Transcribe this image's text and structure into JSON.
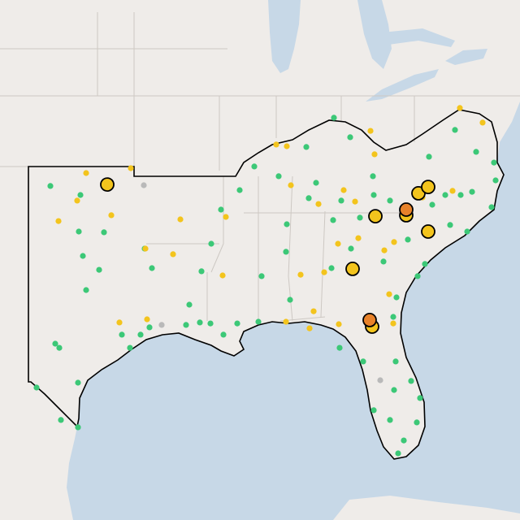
{
  "map": {
    "markers": [
      {
        "color": "#3cc877",
        "outlined": false,
        "points": [
          [
            -101.9,
            36.37
          ],
          [
            -100.05,
            36.0
          ],
          [
            -100.15,
            34.5
          ],
          [
            -98.6,
            34.47
          ],
          [
            -99.9,
            33.5
          ],
          [
            -98.9,
            32.93
          ],
          [
            -99.7,
            32.1
          ],
          [
            -96.1,
            33.8
          ],
          [
            -95.65,
            33.0
          ],
          [
            -101.6,
            29.9
          ],
          [
            -101.35,
            29.73
          ],
          [
            -100.2,
            28.3
          ],
          [
            -102.75,
            28.1
          ],
          [
            -101.25,
            26.77
          ],
          [
            -100.2,
            26.47
          ],
          [
            -97.5,
            30.27
          ],
          [
            -97.0,
            29.73
          ],
          [
            -96.35,
            30.27
          ],
          [
            -95.8,
            30.57
          ],
          [
            -93.55,
            30.67
          ],
          [
            -92.7,
            30.77
          ],
          [
            -92.05,
            30.73
          ],
          [
            -91.25,
            30.27
          ],
          [
            -90.4,
            30.73
          ],
          [
            -89.1,
            30.8
          ],
          [
            -92.6,
            32.87
          ],
          [
            -92.0,
            34.0
          ],
          [
            -91.4,
            35.4
          ],
          [
            -90.25,
            36.2
          ],
          [
            -89.35,
            37.17
          ],
          [
            -87.85,
            36.77
          ],
          [
            -86.15,
            37.97
          ],
          [
            -84.45,
            39.17
          ],
          [
            -83.45,
            38.37
          ],
          [
            -82.05,
            36.77
          ],
          [
            -85.55,
            36.5
          ],
          [
            -84.0,
            35.77
          ],
          [
            -82.0,
            36.0
          ],
          [
            -81.0,
            35.77
          ],
          [
            -87.35,
            34.8
          ],
          [
            -88.9,
            32.67
          ],
          [
            -87.4,
            33.67
          ],
          [
            -84.5,
            34.97
          ],
          [
            -84.6,
            33.0
          ],
          [
            -82.85,
            35.07
          ],
          [
            -78.4,
            35.6
          ],
          [
            -77.3,
            34.77
          ],
          [
            -77.6,
            36.0
          ],
          [
            -75.95,
            36.13
          ],
          [
            -74.75,
            35.5
          ],
          [
            -74.5,
            36.6
          ],
          [
            -76.25,
            34.5
          ],
          [
            -79.9,
            34.17
          ],
          [
            -81.4,
            33.27
          ],
          [
            -78.85,
            33.17
          ],
          [
            -79.3,
            32.67
          ],
          [
            -80.6,
            31.8
          ],
          [
            -80.8,
            31.0
          ],
          [
            -80.65,
            29.17
          ],
          [
            -79.7,
            28.37
          ],
          [
            -79.15,
            27.67
          ],
          [
            -80.75,
            28.0
          ],
          [
            -82.0,
            27.17
          ],
          [
            -81.0,
            26.77
          ],
          [
            -80.15,
            25.93
          ],
          [
            -79.35,
            26.67
          ],
          [
            -80.5,
            25.4
          ],
          [
            -77.0,
            38.67
          ],
          [
            -75.7,
            37.77
          ],
          [
            -78.6,
            37.57
          ],
          [
            -86.0,
            35.87
          ],
          [
            -93.35,
            31.5
          ],
          [
            -87.15,
            31.7
          ],
          [
            -84.1,
            29.73
          ],
          [
            -82.65,
            29.17
          ],
          [
            -76.65,
            36.0
          ],
          [
            -74.6,
            37.33
          ],
          [
            -83.4,
            33.8
          ]
        ]
      },
      {
        "color": "#f3c41d",
        "outlined": false,
        "points": [
          [
            -99.7,
            36.9
          ],
          [
            -96.95,
            37.1
          ],
          [
            -98.15,
            35.17
          ],
          [
            -100.25,
            35.77
          ],
          [
            -101.4,
            34.93
          ],
          [
            -93.9,
            35.0
          ],
          [
            -96.05,
            33.8
          ],
          [
            -94.35,
            33.57
          ],
          [
            -97.65,
            30.77
          ],
          [
            -95.95,
            30.9
          ],
          [
            -91.3,
            32.7
          ],
          [
            -91.1,
            35.1
          ],
          [
            -88.0,
            38.07
          ],
          [
            -87.35,
            38.0
          ],
          [
            -87.1,
            36.4
          ],
          [
            -82.2,
            38.63
          ],
          [
            -81.95,
            37.67
          ],
          [
            -83.85,
            36.2
          ],
          [
            -85.4,
            35.63
          ],
          [
            -83.15,
            35.73
          ],
          [
            -82.95,
            34.23
          ],
          [
            -84.2,
            34.0
          ],
          [
            -81.35,
            33.73
          ],
          [
            -79.0,
            35.9
          ],
          [
            -77.15,
            36.17
          ],
          [
            -76.7,
            39.57
          ],
          [
            -75.3,
            38.97
          ],
          [
            -86.5,
            32.73
          ],
          [
            -87.4,
            30.8
          ],
          [
            -85.7,
            31.23
          ],
          [
            -85.95,
            30.53
          ],
          [
            -84.15,
            30.7
          ],
          [
            -80.8,
            30.73
          ],
          [
            -81.05,
            31.93
          ],
          [
            -85.05,
            32.83
          ],
          [
            -80.75,
            34.07
          ]
        ]
      },
      {
        "color": "#b9b9b9",
        "outlined": false,
        "points": [
          [
            -96.15,
            36.4
          ],
          [
            -95.05,
            30.67
          ],
          [
            -81.6,
            28.4
          ]
        ]
      },
      {
        "color": "#f3c41d",
        "outlined": true,
        "points": [
          [
            -98.4,
            36.43
          ],
          [
            -81.9,
            35.13
          ],
          [
            -79.25,
            36.07
          ],
          [
            -78.65,
            36.33
          ],
          [
            -80.0,
            35.17
          ],
          [
            -78.65,
            34.5
          ],
          [
            -83.3,
            32.97
          ],
          [
            -82.1,
            30.6
          ]
        ]
      },
      {
        "color": "#e8822a",
        "outlined": true,
        "points": [
          [
            -80.0,
            35.4
          ],
          [
            -82.25,
            30.87
          ]
        ]
      }
    ]
  }
}
